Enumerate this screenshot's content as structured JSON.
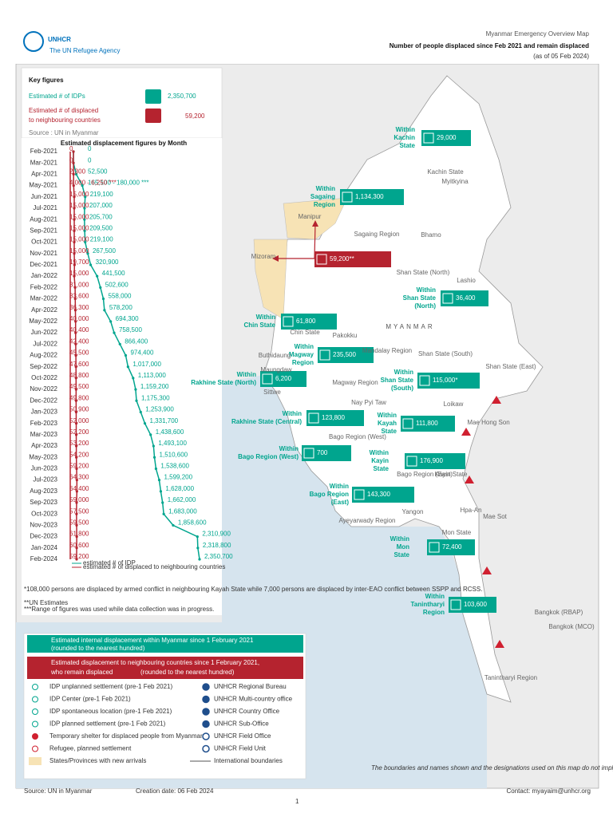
{
  "header": {
    "logo": "UNHCR",
    "logo_sub": "The UN Refugee Agency",
    "overline": "Myanmar Emergency Overview Map",
    "title": "Number of people displaced since Feb 2021 and remain displaced",
    "date": "(as of 05 Feb 2024)"
  },
  "key_figures": {
    "title": "Key figures",
    "idp_label": "Estimated # of IDPs",
    "idp_value": "2,350,700",
    "ref_label": [
      "Estimated # of displaced",
      "to neighbouring countries"
    ],
    "ref_value": "59,200",
    "source": "Source : UN in Myanmar"
  },
  "chart_data": {
    "type": "line",
    "title": "Estimated displacement figures by Month",
    "categories": [
      "Feb-2021",
      "Mar-2021",
      "Apr-2021",
      "May-2021",
      "Jun-2021",
      "Jul-2021",
      "Aug-2021",
      "Sep-2021",
      "Oct-2021",
      "Nov-2021",
      "Dec-2021",
      "Jan-2022",
      "Feb-2022",
      "Mar-2022",
      "Apr-2022",
      "May-2022",
      "Jun-2022",
      "Jul-2022",
      "Aug-2022",
      "Sep-2022",
      "Oct-2022",
      "Nov-2022",
      "Dec-2022",
      "Jan-2023",
      "Feb-2023",
      "Mar-2023",
      "Apr-2023",
      "May-2023",
      "Jun-2023",
      "Jul-2023",
      "Aug-2023",
      "Sep-2023",
      "Oct-2023",
      "Nov-2023",
      "Dec-2023",
      "Jan-2024",
      "Feb-2024"
    ],
    "series": [
      {
        "name": "estimated # of IDP",
        "color": "#00a58e",
        "values": [
          0,
          0,
          52500,
          165100,
          219100,
          207000,
          205700,
          209500,
          219100,
          267500,
          320900,
          441500,
          502600,
          558000,
          578200,
          694300,
          758500,
          866400,
          974400,
          1017000,
          1113000,
          1159200,
          1175300,
          1253900,
          1331700,
          1438600,
          1493100,
          1510600,
          1538600,
          1599200,
          1628000,
          1662000,
          1683000,
          1858600,
          2310900,
          2318800,
          2350700
        ],
        "value_labels": [
          "0",
          "0",
          "52,500",
          "165,100 - 180,000 ***",
          "219,100",
          "207,000",
          "205,700",
          "209,500",
          "219,100",
          "267,500",
          "320,900",
          "441,500",
          "502,600",
          "558,000",
          "578,200",
          "694,300",
          "758,500",
          "866,400",
          "974,400",
          "1,017,000",
          "1,113,000",
          "1,159,200",
          "1,175,300",
          "1,253,900",
          "1,331,700",
          "1,438,600",
          "1,493,100",
          "1,510,600",
          "1,538,600",
          "1,599,200",
          "1,628,000",
          "1,662,000",
          "1,683,000",
          "1,858,600",
          "2,310,900",
          "2,318,800",
          "2,350,700"
        ]
      },
      {
        "name": "estimated # of displaced to neighbouring countries",
        "color": "#b5232f",
        "values": [
          0,
          0,
          2300,
          4000,
          15000,
          15000,
          15000,
          15000,
          15000,
          15000,
          19700,
          15000,
          31000,
          33600,
          36300,
          40000,
          40400,
          42400,
          45500,
          47600,
          48800,
          49500,
          49800,
          50900,
          52000,
          52200,
          53200,
          54200,
          59200,
          64300,
          64400,
          59000,
          57500,
          59500,
          61800,
          60600,
          59200
        ],
        "value_labels": [
          "0",
          "0",
          "2,300",
          "4,000 - 6,250 ***",
          "15,000",
          "15,000",
          "15,000",
          "15,000",
          "15,000",
          "15,000",
          "19,700",
          "15,000",
          "31,000",
          "33,600",
          "36,300",
          "40,000",
          "40,400",
          "42,400",
          "45,500",
          "47,600",
          "48,800",
          "49,500",
          "49,800",
          "50,900",
          "52,000",
          "52,200",
          "53,200",
          "54,200",
          "59,200",
          "64,300",
          "64,400",
          "59,000",
          "57,500",
          "59,500",
          "61,800",
          "60,600",
          "59,200"
        ]
      }
    ]
  },
  "footnotes": [
    "*108,000 persons are displaced by armed conflict in neighbouring Kayah State while 7,000 persons are displaced by inter-EAO conflict between SSPP and RCSS.",
    "**UN Estimates",
    "***Range of figures was used while data collection was in progress."
  ],
  "map": {
    "country": "MYANMAR",
    "callouts": [
      {
        "label": [
          "Within",
          "Kachin",
          "State"
        ],
        "value": "29,000",
        "color": "#00a58e"
      },
      {
        "label": [
          "Within",
          "Sagaing",
          "Region"
        ],
        "value": "1,134,300",
        "color": "#00a58e"
      },
      {
        "label": [],
        "value": "59,200**",
        "color": "#b5232f"
      },
      {
        "label": [
          "Within",
          "Shan State",
          "(North)"
        ],
        "value": "36,400",
        "color": "#00a58e"
      },
      {
        "label": [
          "Within",
          "Chin State"
        ],
        "value": "61,800",
        "color": "#00a58e"
      },
      {
        "label": [
          "Within",
          "Magway",
          "Region"
        ],
        "value": "235,500",
        "color": "#00a58e"
      },
      {
        "label": [
          "Within",
          "Rakhine State (North)"
        ],
        "value": "6,200",
        "color": "#00a58e"
      },
      {
        "label": [
          "Within",
          "Shan State",
          "(South)"
        ],
        "value": "115,000*",
        "color": "#00a58e"
      },
      {
        "label": [
          "Within",
          "Rakhine State (Central)"
        ],
        "value": "123,800",
        "color": "#00a58e"
      },
      {
        "label": [
          "Within",
          "Kayah",
          "State"
        ],
        "value": "111,800",
        "color": "#00a58e"
      },
      {
        "label": [
          "Within",
          "Bago Region (West)"
        ],
        "value": "700",
        "color": "#00a58e"
      },
      {
        "label": [
          "Within",
          "Kayin",
          "State"
        ],
        "value": "176,900",
        "color": "#00a58e"
      },
      {
        "label": [
          "Within",
          "Bago Region",
          "(East)"
        ],
        "value": "143,300",
        "color": "#00a58e"
      },
      {
        "label": [
          "Within",
          "Mon",
          "State"
        ],
        "value": "72,400",
        "color": "#00a58e"
      },
      {
        "label": [
          "Within",
          "Tanintharyi",
          "Region"
        ],
        "value": "103,600",
        "color": "#00a58e"
      }
    ],
    "places": [
      "Kachin State",
      "Myitkyina",
      "Sagaing Region",
      "Bhamo",
      "Manipur",
      "Mizoram",
      "Shan State (North)",
      "Lashio",
      "Chin State",
      "Pakokku",
      "Mandalay Region",
      "Shan State (South)",
      "Shan State (East)",
      "Magway Region",
      "Sittwe",
      "Nay Pyi Taw",
      "Loikaw",
      "Bago Region (West)",
      "Mae Hong Son",
      "Bago Region (East)",
      "Kayin State",
      "Yangon",
      "Hpa-An",
      "Mae Sot",
      "Ayeyarwady Region",
      "Mon State",
      "Tanintharyi Region",
      "Bangkok (RBAP)",
      "Bangkok (MCO)",
      "Buthidaung",
      "Maungdaw"
    ],
    "disclaimer": "The boundaries and names shown and the designations used on this map do not imply official endorsement or acceptance by the United Nations."
  },
  "legend": {
    "idp_box": {
      "title": "Estimated internal displacement within Myanmar since 1 February 2021",
      "note": "(rounded to the nearest hundred)"
    },
    "ref_box": {
      "title": "Estimated displacement to neighbouring countries since 1 February 2021,",
      "title2": "who remain displaced",
      "note": "(rounded to the nearest hundred)"
    },
    "left": [
      "IDP unplanned settlement (pre-1 Feb 2021)",
      "IDP Center (pre-1 Feb 2021)",
      "IDP spontaneous location (pre-1 Feb 2021)",
      "IDP planned settlement (pre-1 Feb 2021)",
      "Temporary shelter for displaced people from Myanmar",
      "Refugee, planned settlement",
      "States/Provinces with new arrivals"
    ],
    "right": [
      "UNHCR Regional Bureau",
      "UNHCR Multi-country office",
      "UNHCR Country Office",
      "UNHCR Sub-Office",
      "UNHCR Field Office",
      "UNHCR Field Unit",
      "International boundaries"
    ]
  },
  "footer": {
    "source": "Source: UN in Myanmar",
    "created": "Creation date: 06 Feb 2024",
    "contact": "Contact: myayaim@unhcr.org",
    "page": "1"
  }
}
